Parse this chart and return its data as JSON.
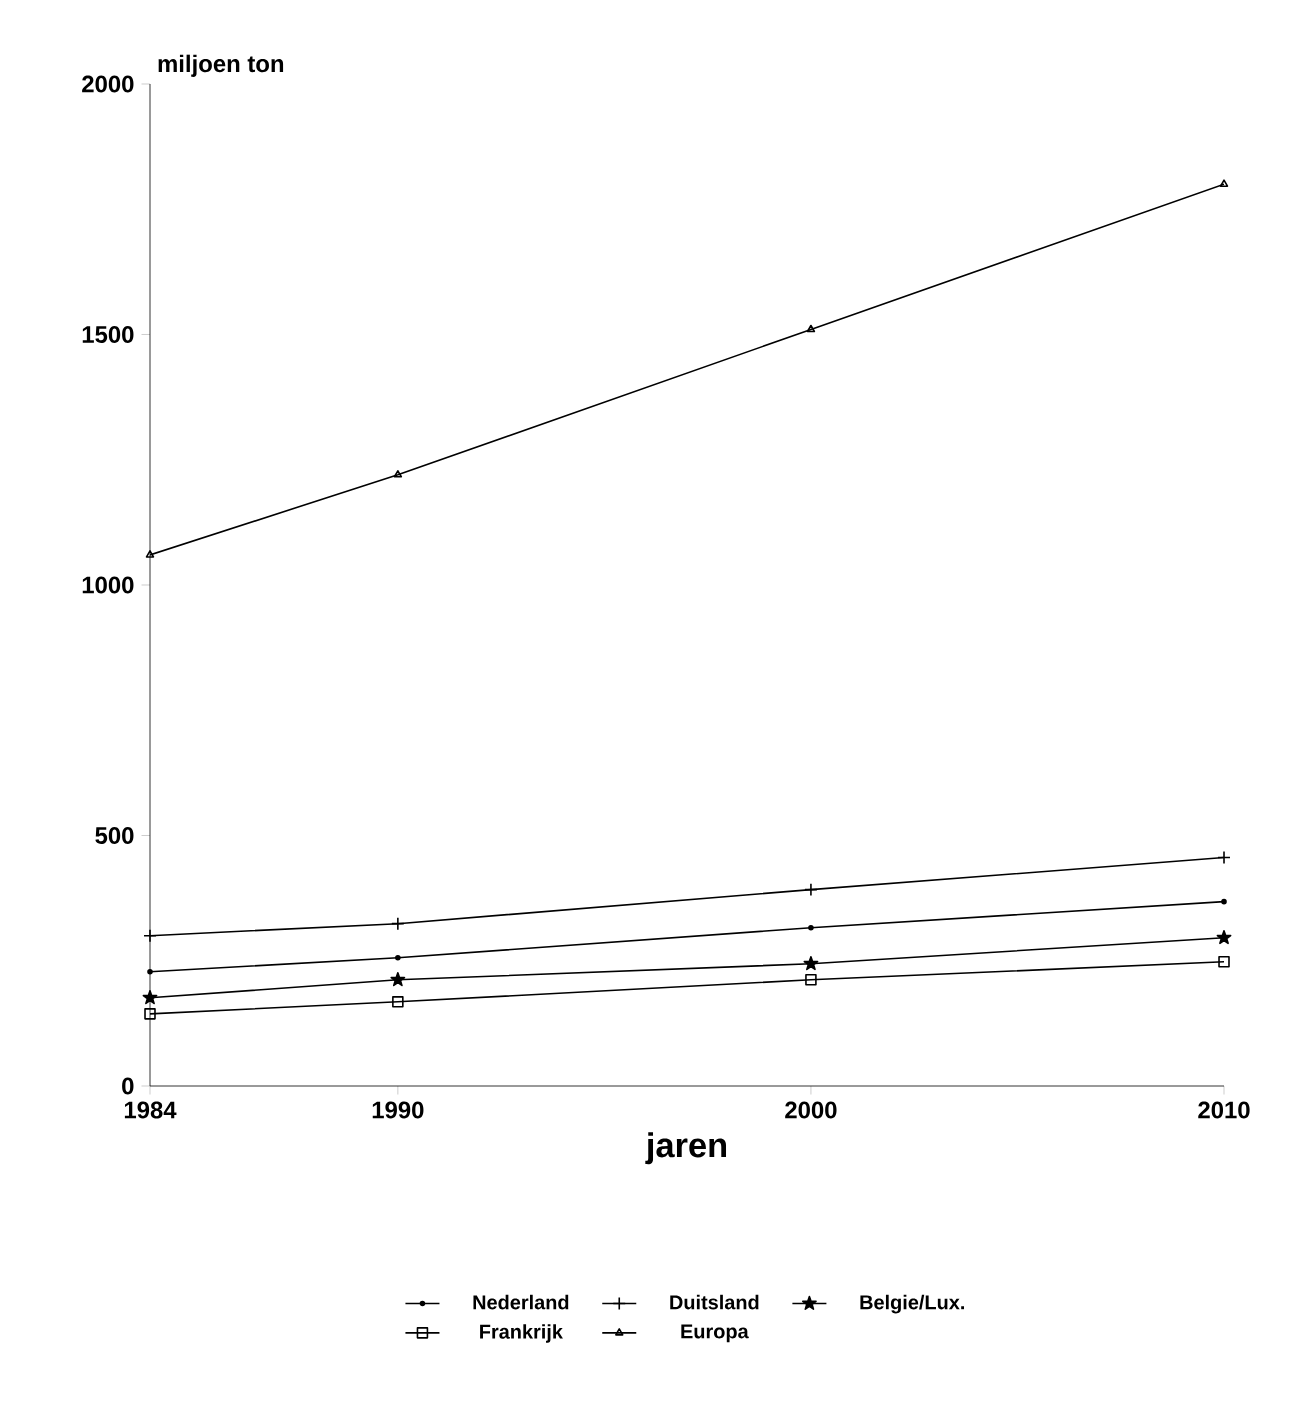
{
  "chart_data": {
    "type": "line",
    "xlabel": "jaren",
    "ylabel": "miljoen ton",
    "x": [
      1984,
      1990,
      2000,
      2010
    ],
    "xlim": [
      1984,
      2010
    ],
    "xticks": [
      1984,
      1990,
      2000,
      2010
    ],
    "ylim": [
      0,
      2000
    ],
    "yticks": [
      0,
      500,
      1000,
      1500,
      2000
    ],
    "legend": "bottom",
    "line_style": "solid",
    "series": [
      {
        "name": "Nederland",
        "color": "#000000",
        "marker": "circle",
        "values": [
          228,
          256,
          316,
          368
        ]
      },
      {
        "name": "Duitsland",
        "color": "#000000",
        "marker": "cross",
        "values": [
          300,
          324,
          392,
          456
        ]
      },
      {
        "name": "Belgie/Lux.",
        "color": "#000000",
        "marker": "star",
        "values": [
          176,
          212,
          244,
          296
        ]
      },
      {
        "name": "Frankrijk",
        "color": "#000000",
        "marker": "square",
        "values": [
          144,
          168,
          212,
          248
        ]
      },
      {
        "name": "Europa",
        "color": "#000000",
        "marker": "triangle",
        "values": [
          1060,
          1220,
          1510,
          1800
        ]
      }
    ]
  }
}
